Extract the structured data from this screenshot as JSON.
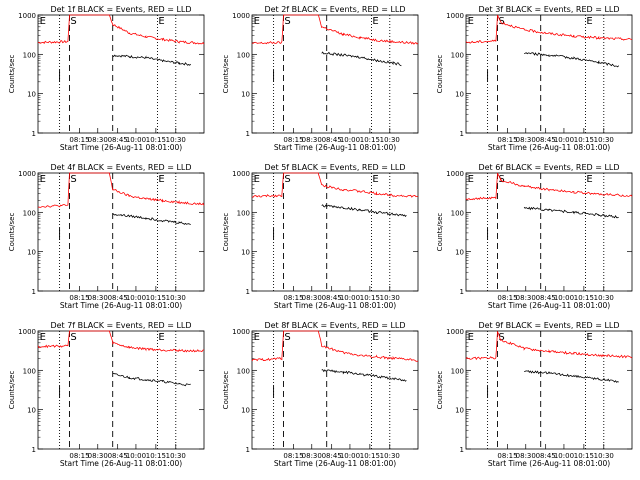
{
  "chart_data": [
    {
      "type": "line",
      "title": "Det 1f BLACK = Events, RED = LLD",
      "xlabel": "Start Time (26-Aug-11 08:01:00)",
      "ylabel": "Counts/sec",
      "y_scale": "log",
      "ylim": [
        1,
        1000
      ],
      "y_tick_labels": [
        "1",
        "10",
        "100",
        "1000"
      ],
      "x_tick_labels": [
        "08:15",
        "08:30",
        "08:45",
        "10:00",
        "10:15",
        "10:30"
      ],
      "markers": [
        {
          "label": "E",
          "position": "left"
        },
        {
          "label": "S",
          "position": "first-dashed"
        },
        {
          "label": "E",
          "position": "right-dotted"
        }
      ],
      "series": [
        {
          "name": "LLD",
          "color": "#ff0000",
          "points": [
            [
              0.0,
              200
            ],
            [
              0.18,
              210
            ],
            [
              0.19,
              1000
            ],
            [
              0.43,
              1000
            ],
            [
              0.45,
              580
            ],
            [
              0.55,
              350
            ],
            [
              0.65,
              280
            ],
            [
              0.75,
              240
            ],
            [
              0.85,
              210
            ],
            [
              1.0,
              190
            ]
          ]
        },
        {
          "name": "Events",
          "color": "#000000",
          "points": [
            [
              0.45,
              95
            ],
            [
              0.55,
              88
            ],
            [
              0.65,
              82
            ],
            [
              0.75,
              68
            ],
            [
              0.85,
              60
            ],
            [
              0.92,
              55
            ]
          ]
        }
      ]
    },
    {
      "type": "line",
      "title": "Det 2f BLACK = Events, RED = LLD",
      "xlabel": "Start Time (26-Aug-11 08:01:00)",
      "ylabel": "Counts/sec",
      "y_scale": "log",
      "ylim": [
        1,
        1000
      ],
      "y_tick_labels": [
        "1",
        "10",
        "100",
        "1000"
      ],
      "x_tick_labels": [
        "08:15",
        "08:30",
        "08:45",
        "10:00",
        "10:15",
        "10:30"
      ],
      "markers": [
        {
          "label": "E",
          "position": "left"
        },
        {
          "label": "S",
          "position": "first-dashed"
        },
        {
          "label": "E",
          "position": "right-dotted"
        }
      ],
      "series": [
        {
          "name": "LLD",
          "color": "#ff0000",
          "points": [
            [
              0.0,
              190
            ],
            [
              0.18,
              200
            ],
            [
              0.19,
              1000
            ],
            [
              0.4,
              1000
            ],
            [
              0.42,
              500
            ],
            [
              0.55,
              320
            ],
            [
              0.65,
              270
            ],
            [
              0.75,
              230
            ],
            [
              0.85,
              210
            ],
            [
              1.0,
              190
            ]
          ]
        },
        {
          "name": "Events",
          "color": "#000000",
          "points": [
            [
              0.42,
              110
            ],
            [
              0.55,
              95
            ],
            [
              0.65,
              85
            ],
            [
              0.75,
              70
            ],
            [
              0.85,
              60
            ],
            [
              0.9,
              55
            ]
          ]
        }
      ]
    },
    {
      "type": "line",
      "title": "Det 3f BLACK = Events, RED = LLD",
      "xlabel": "Start Time (26-Aug-11 08:01:00)",
      "ylabel": "Counts/sec",
      "y_scale": "log",
      "ylim": [
        1,
        1000
      ],
      "y_tick_labels": [
        "1",
        "10",
        "100",
        "1000"
      ],
      "x_tick_labels": [
        "08:15",
        "08:30",
        "08:45",
        "10:00",
        "10:15",
        "10:30"
      ],
      "markers": [
        {
          "label": "E",
          "position": "left"
        },
        {
          "label": "S",
          "position": "first-dashed"
        },
        {
          "label": "E",
          "position": "right-dotted"
        }
      ],
      "series": [
        {
          "name": "LLD",
          "color": "#ff0000",
          "points": [
            [
              0.0,
              200
            ],
            [
              0.18,
              220
            ],
            [
              0.19,
              1000
            ],
            [
              0.21,
              650
            ],
            [
              0.35,
              420
            ],
            [
              0.5,
              340
            ],
            [
              0.65,
              290
            ],
            [
              0.8,
              260
            ],
            [
              1.0,
              240
            ]
          ]
        },
        {
          "name": "Events",
          "color": "#000000",
          "points": [
            [
              0.35,
              110
            ],
            [
              0.5,
              95
            ],
            [
              0.65,
              80
            ],
            [
              0.8,
              62
            ],
            [
              0.92,
              50
            ]
          ]
        }
      ]
    },
    {
      "type": "line",
      "title": "Det 4f BLACK = Events, RED = LLD",
      "xlabel": "Start Time (26-Aug-11 08:01:00)",
      "ylabel": "Counts/sec",
      "y_scale": "log",
      "ylim": [
        1,
        1000
      ],
      "y_tick_labels": [
        "1",
        "10",
        "100",
        "1000"
      ],
      "x_tick_labels": [
        "08:15",
        "08:30",
        "08:45",
        "10:00",
        "10:15",
        "10:30"
      ],
      "markers": [
        {
          "label": "E",
          "position": "left"
        },
        {
          "label": "S",
          "position": "first-dashed"
        },
        {
          "label": "E",
          "position": "right-dotted"
        }
      ],
      "series": [
        {
          "name": "LLD",
          "color": "#ff0000",
          "points": [
            [
              0.0,
              140
            ],
            [
              0.18,
              150
            ],
            [
              0.19,
              1000
            ],
            [
              0.43,
              1000
            ],
            [
              0.45,
              380
            ],
            [
              0.55,
              260
            ],
            [
              0.65,
              220
            ],
            [
              0.75,
              200
            ],
            [
              0.85,
              180
            ],
            [
              1.0,
              160
            ]
          ]
        },
        {
          "name": "Events",
          "color": "#000000",
          "points": [
            [
              0.45,
              90
            ],
            [
              0.55,
              80
            ],
            [
              0.65,
              72
            ],
            [
              0.75,
              62
            ],
            [
              0.85,
              55
            ],
            [
              0.92,
              50
            ]
          ]
        }
      ]
    },
    {
      "type": "line",
      "title": "Det 5f BLACK = Events, RED = LLD",
      "xlabel": "Start Time (26-Aug-11 08:01:00)",
      "ylabel": "Counts/sec",
      "y_scale": "log",
      "ylim": [
        1,
        1000
      ],
      "y_tick_labels": [
        "1",
        "10",
        "100",
        "1000"
      ],
      "x_tick_labels": [
        "08:15",
        "08:30",
        "08:45",
        "10:00",
        "10:15",
        "10:30"
      ],
      "markers": [
        {
          "label": "E",
          "position": "left"
        },
        {
          "label": "S",
          "position": "first-dashed"
        },
        {
          "label": "E",
          "position": "right-dotted"
        }
      ],
      "series": [
        {
          "name": "LLD",
          "color": "#ff0000",
          "points": [
            [
              0.0,
              250
            ],
            [
              0.18,
              270
            ],
            [
              0.19,
              1000
            ],
            [
              0.4,
              1000
            ],
            [
              0.42,
              480
            ],
            [
              0.55,
              380
            ],
            [
              0.65,
              340
            ],
            [
              0.75,
              300
            ],
            [
              0.85,
              270
            ],
            [
              1.0,
              250
            ]
          ]
        },
        {
          "name": "Events",
          "color": "#000000",
          "points": [
            [
              0.42,
              150
            ],
            [
              0.55,
              130
            ],
            [
              0.65,
              115
            ],
            [
              0.75,
              100
            ],
            [
              0.85,
              90
            ],
            [
              0.93,
              80
            ]
          ]
        }
      ]
    },
    {
      "type": "line",
      "title": "Det 6f BLACK = Events, RED = LLD",
      "xlabel": "Start Time (26-Aug-11 08:01:00)",
      "ylabel": "Counts/sec",
      "y_scale": "log",
      "ylim": [
        1,
        1000
      ],
      "y_tick_labels": [
        "1",
        "10",
        "100",
        "1000"
      ],
      "x_tick_labels": [
        "08:15",
        "08:30",
        "08:45",
        "10:00",
        "10:15",
        "10:30"
      ],
      "markers": [
        {
          "label": "E",
          "position": "left"
        },
        {
          "label": "S",
          "position": "first-dashed"
        },
        {
          "label": "E",
          "position": "right-dotted"
        }
      ],
      "series": [
        {
          "name": "LLD",
          "color": "#ff0000",
          "points": [
            [
              0.0,
              220
            ],
            [
              0.18,
              230
            ],
            [
              0.19,
              1000
            ],
            [
              0.21,
              650
            ],
            [
              0.35,
              460
            ],
            [
              0.5,
              380
            ],
            [
              0.65,
              330
            ],
            [
              0.8,
              290
            ],
            [
              1.0,
              260
            ]
          ]
        },
        {
          "name": "Events",
          "color": "#000000",
          "points": [
            [
              0.35,
              130
            ],
            [
              0.5,
              115
            ],
            [
              0.65,
              100
            ],
            [
              0.8,
              85
            ],
            [
              0.92,
              75
            ]
          ]
        }
      ]
    },
    {
      "type": "line",
      "title": "Det 7f BLACK = Events, RED = LLD",
      "xlabel": "Start Time (26-Aug-11 08:01:00)",
      "ylabel": "Counts/sec",
      "y_scale": "log",
      "ylim": [
        1,
        1000
      ],
      "y_tick_labels": [
        "1",
        "10",
        "100",
        "1000"
      ],
      "x_tick_labels": [
        "08:15",
        "08:30",
        "08:45",
        "10:00",
        "10:15",
        "10:30"
      ],
      "markers": [
        {
          "label": "E",
          "position": "left"
        },
        {
          "label": "S",
          "position": "first-dashed"
        },
        {
          "label": "E",
          "position": "right-dotted"
        }
      ],
      "series": [
        {
          "name": "LLD",
          "color": "#ff0000",
          "points": [
            [
              0.0,
              400
            ],
            [
              0.18,
              420
            ],
            [
              0.19,
              1000
            ],
            [
              0.43,
              1000
            ],
            [
              0.45,
              500
            ],
            [
              0.55,
              380
            ],
            [
              0.65,
              350
            ],
            [
              0.75,
              330
            ],
            [
              0.85,
              320
            ],
            [
              1.0,
              310
            ]
          ]
        },
        {
          "name": "Events",
          "color": "#000000",
          "points": [
            [
              0.45,
              80
            ],
            [
              0.55,
              65
            ],
            [
              0.65,
              58
            ],
            [
              0.75,
              52
            ],
            [
              0.85,
              45
            ],
            [
              0.92,
              42
            ]
          ]
        }
      ]
    },
    {
      "type": "line",
      "title": "Det 8f BLACK = Events, RED = LLD",
      "xlabel": "Start Time (26-Aug-11 08:01:00)",
      "ylabel": "Counts/sec",
      "y_scale": "log",
      "ylim": [
        1,
        1000
      ],
      "y_tick_labels": [
        "1",
        "10",
        "100",
        "1000"
      ],
      "x_tick_labels": [
        "08:15",
        "08:30",
        "08:45",
        "10:00",
        "10:15",
        "10:30"
      ],
      "markers": [
        {
          "label": "E",
          "position": "left"
        },
        {
          "label": "S",
          "position": "first-dashed"
        },
        {
          "label": "E",
          "position": "right-dotted"
        }
      ],
      "series": [
        {
          "name": "LLD",
          "color": "#ff0000",
          "points": [
            [
              0.0,
              180
            ],
            [
              0.18,
              200
            ],
            [
              0.19,
              1000
            ],
            [
              0.4,
              1000
            ],
            [
              0.42,
              420
            ],
            [
              0.55,
              280
            ],
            [
              0.65,
              240
            ],
            [
              0.75,
              220
            ],
            [
              0.85,
              200
            ],
            [
              1.0,
              180
            ]
          ]
        },
        {
          "name": "Events",
          "color": "#000000",
          "points": [
            [
              0.42,
              100
            ],
            [
              0.55,
              90
            ],
            [
              0.65,
              80
            ],
            [
              0.75,
              70
            ],
            [
              0.85,
              62
            ],
            [
              0.93,
              55
            ]
          ]
        }
      ]
    },
    {
      "type": "line",
      "title": "Det 9f BLACK = Events, RED = LLD",
      "xlabel": "Start Time (26-Aug-11 08:01:00)",
      "ylabel": "Counts/sec",
      "y_scale": "log",
      "ylim": [
        1,
        1000
      ],
      "y_tick_labels": [
        "1",
        "10",
        "100",
        "1000"
      ],
      "x_tick_labels": [
        "08:15",
        "08:30",
        "08:45",
        "10:00",
        "10:15",
        "10:30"
      ],
      "markers": [
        {
          "label": "E",
          "position": "left"
        },
        {
          "label": "S",
          "position": "first-dashed"
        },
        {
          "label": "E",
          "position": "right-dotted"
        }
      ],
      "series": [
        {
          "name": "LLD",
          "color": "#ff0000",
          "points": [
            [
              0.0,
              200
            ],
            [
              0.18,
              210
            ],
            [
              0.19,
              1000
            ],
            [
              0.21,
              600
            ],
            [
              0.35,
              360
            ],
            [
              0.5,
              300
            ],
            [
              0.65,
              270
            ],
            [
              0.8,
              240
            ],
            [
              1.0,
              220
            ]
          ]
        },
        {
          "name": "Events",
          "color": "#000000",
          "points": [
            [
              0.35,
              95
            ],
            [
              0.5,
              85
            ],
            [
              0.65,
              72
            ],
            [
              0.8,
              60
            ],
            [
              0.92,
              52
            ]
          ]
        }
      ]
    }
  ]
}
